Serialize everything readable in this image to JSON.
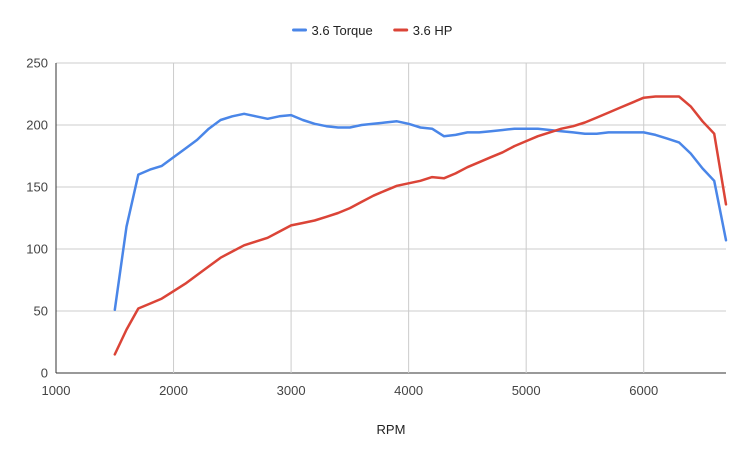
{
  "chart_data": {
    "type": "line",
    "title": "",
    "xlabel": "RPM",
    "ylabel": "",
    "xlim": [
      1000,
      6700
    ],
    "ylim": [
      0,
      250
    ],
    "x_ticks": [
      1000,
      2000,
      3000,
      4000,
      5000,
      6000
    ],
    "y_ticks": [
      0,
      50,
      100,
      150,
      200,
      250
    ],
    "grid": true,
    "legend": "top-center",
    "series": [
      {
        "name": "3.6 Torque",
        "color": "#4a86e8",
        "points": [
          [
            1500,
            51
          ],
          [
            1600,
            118
          ],
          [
            1700,
            160
          ],
          [
            1800,
            164
          ],
          [
            1900,
            167
          ],
          [
            2000,
            174
          ],
          [
            2100,
            181
          ],
          [
            2200,
            188
          ],
          [
            2300,
            197
          ],
          [
            2400,
            204
          ],
          [
            2500,
            207
          ],
          [
            2600,
            209
          ],
          [
            2700,
            207
          ],
          [
            2800,
            205
          ],
          [
            2900,
            207
          ],
          [
            3000,
            208
          ],
          [
            3100,
            204
          ],
          [
            3200,
            201
          ],
          [
            3300,
            199
          ],
          [
            3400,
            198
          ],
          [
            3500,
            198
          ],
          [
            3600,
            200
          ],
          [
            3700,
            201
          ],
          [
            3800,
            202
          ],
          [
            3900,
            203
          ],
          [
            4000,
            201
          ],
          [
            4100,
            198
          ],
          [
            4200,
            197
          ],
          [
            4300,
            191
          ],
          [
            4400,
            192
          ],
          [
            4500,
            194
          ],
          [
            4600,
            194
          ],
          [
            4700,
            195
          ],
          [
            4800,
            196
          ],
          [
            4900,
            197
          ],
          [
            5000,
            197
          ],
          [
            5100,
            197
          ],
          [
            5200,
            196
          ],
          [
            5300,
            195
          ],
          [
            5400,
            194
          ],
          [
            5500,
            193
          ],
          [
            5600,
            193
          ],
          [
            5700,
            194
          ],
          [
            5800,
            194
          ],
          [
            5900,
            194
          ],
          [
            6000,
            194
          ],
          [
            6100,
            192
          ],
          [
            6200,
            189
          ],
          [
            6300,
            186
          ],
          [
            6400,
            177
          ],
          [
            6500,
            165
          ],
          [
            6600,
            155
          ],
          [
            6700,
            107
          ]
        ]
      },
      {
        "name": "3.6 HP",
        "color": "#db4437",
        "points": [
          [
            1500,
            15
          ],
          [
            1600,
            35
          ],
          [
            1700,
            52
          ],
          [
            1800,
            56
          ],
          [
            1900,
            60
          ],
          [
            2000,
            66
          ],
          [
            2100,
            72
          ],
          [
            2200,
            79
          ],
          [
            2300,
            86
          ],
          [
            2400,
            93
          ],
          [
            2500,
            98
          ],
          [
            2600,
            103
          ],
          [
            2700,
            106
          ],
          [
            2800,
            109
          ],
          [
            2900,
            114
          ],
          [
            3000,
            119
          ],
          [
            3100,
            121
          ],
          [
            3200,
            123
          ],
          [
            3300,
            126
          ],
          [
            3400,
            129
          ],
          [
            3500,
            133
          ],
          [
            3600,
            138
          ],
          [
            3700,
            143
          ],
          [
            3800,
            147
          ],
          [
            3900,
            151
          ],
          [
            4000,
            153
          ],
          [
            4100,
            155
          ],
          [
            4200,
            158
          ],
          [
            4300,
            157
          ],
          [
            4400,
            161
          ],
          [
            4500,
            166
          ],
          [
            4600,
            170
          ],
          [
            4700,
            174
          ],
          [
            4800,
            178
          ],
          [
            4900,
            183
          ],
          [
            5000,
            187
          ],
          [
            5100,
            191
          ],
          [
            5200,
            194
          ],
          [
            5300,
            197
          ],
          [
            5400,
            199
          ],
          [
            5500,
            202
          ],
          [
            5600,
            206
          ],
          [
            5700,
            210
          ],
          [
            5800,
            214
          ],
          [
            5900,
            218
          ],
          [
            6000,
            222
          ],
          [
            6100,
            223
          ],
          [
            6200,
            223
          ],
          [
            6300,
            223
          ],
          [
            6400,
            215
          ],
          [
            6500,
            203
          ],
          [
            6600,
            193
          ],
          [
            6700,
            136
          ]
        ]
      }
    ]
  }
}
